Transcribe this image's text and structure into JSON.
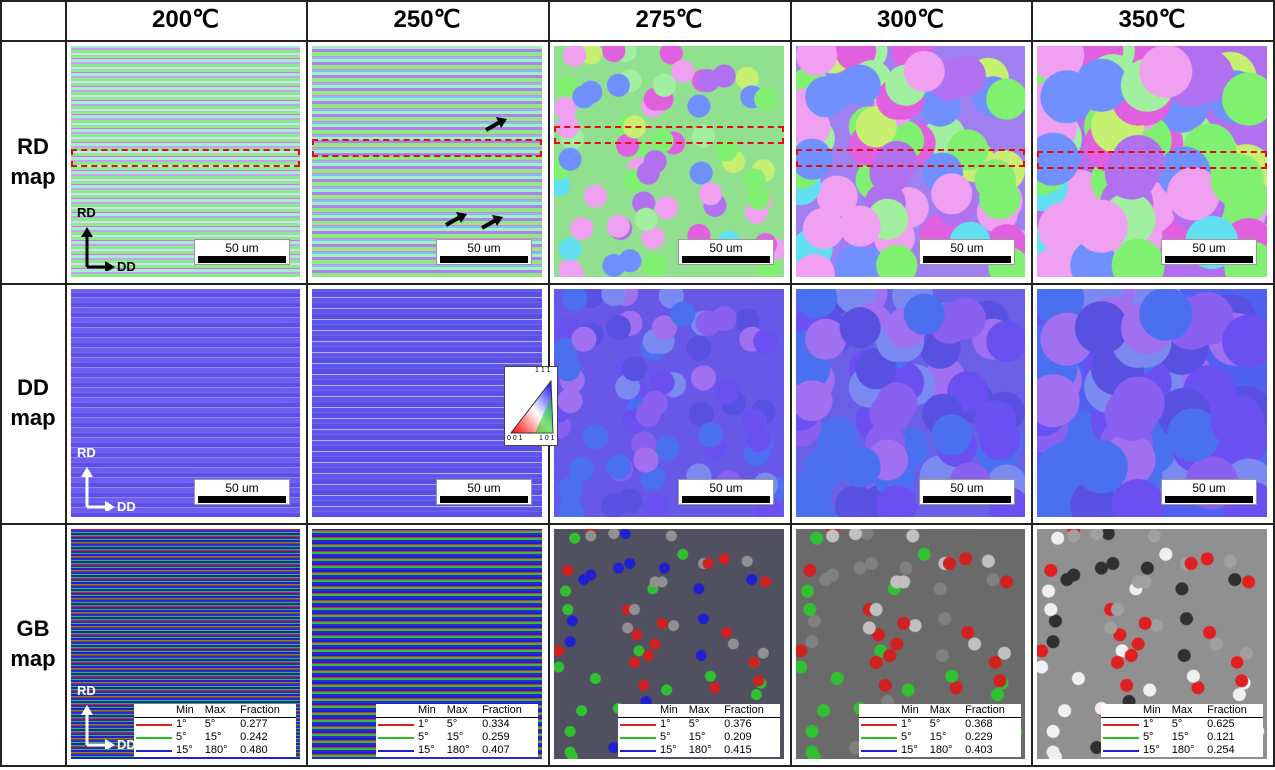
{
  "columns": [
    "200℃",
    "250℃",
    "275℃",
    "300℃",
    "350℃"
  ],
  "rows": [
    "RD map",
    "DD map",
    "GB map"
  ],
  "scale_bar": "50 um",
  "axes": {
    "rd": "RD",
    "dd": "DD"
  },
  "ipf_triangle": {
    "top": "1 1 1",
    "left": "0 0 1",
    "right": "1 0 1"
  },
  "gb_legend": {
    "headers": [
      "Min",
      "Max",
      "Fraction"
    ],
    "ranges": [
      [
        "1°",
        "5°"
      ],
      [
        "5°",
        "15°"
      ],
      [
        "15°",
        "180°"
      ]
    ],
    "fractions": [
      [
        "0.277",
        "0.242",
        "0.480"
      ],
      [
        "0.334",
        "0.259",
        "0.407"
      ],
      [
        "0.376",
        "0.209",
        "0.415"
      ],
      [
        "0.368",
        "0.229",
        "0.403"
      ],
      [
        "0.625",
        "0.121",
        "0.254"
      ]
    ]
  }
}
